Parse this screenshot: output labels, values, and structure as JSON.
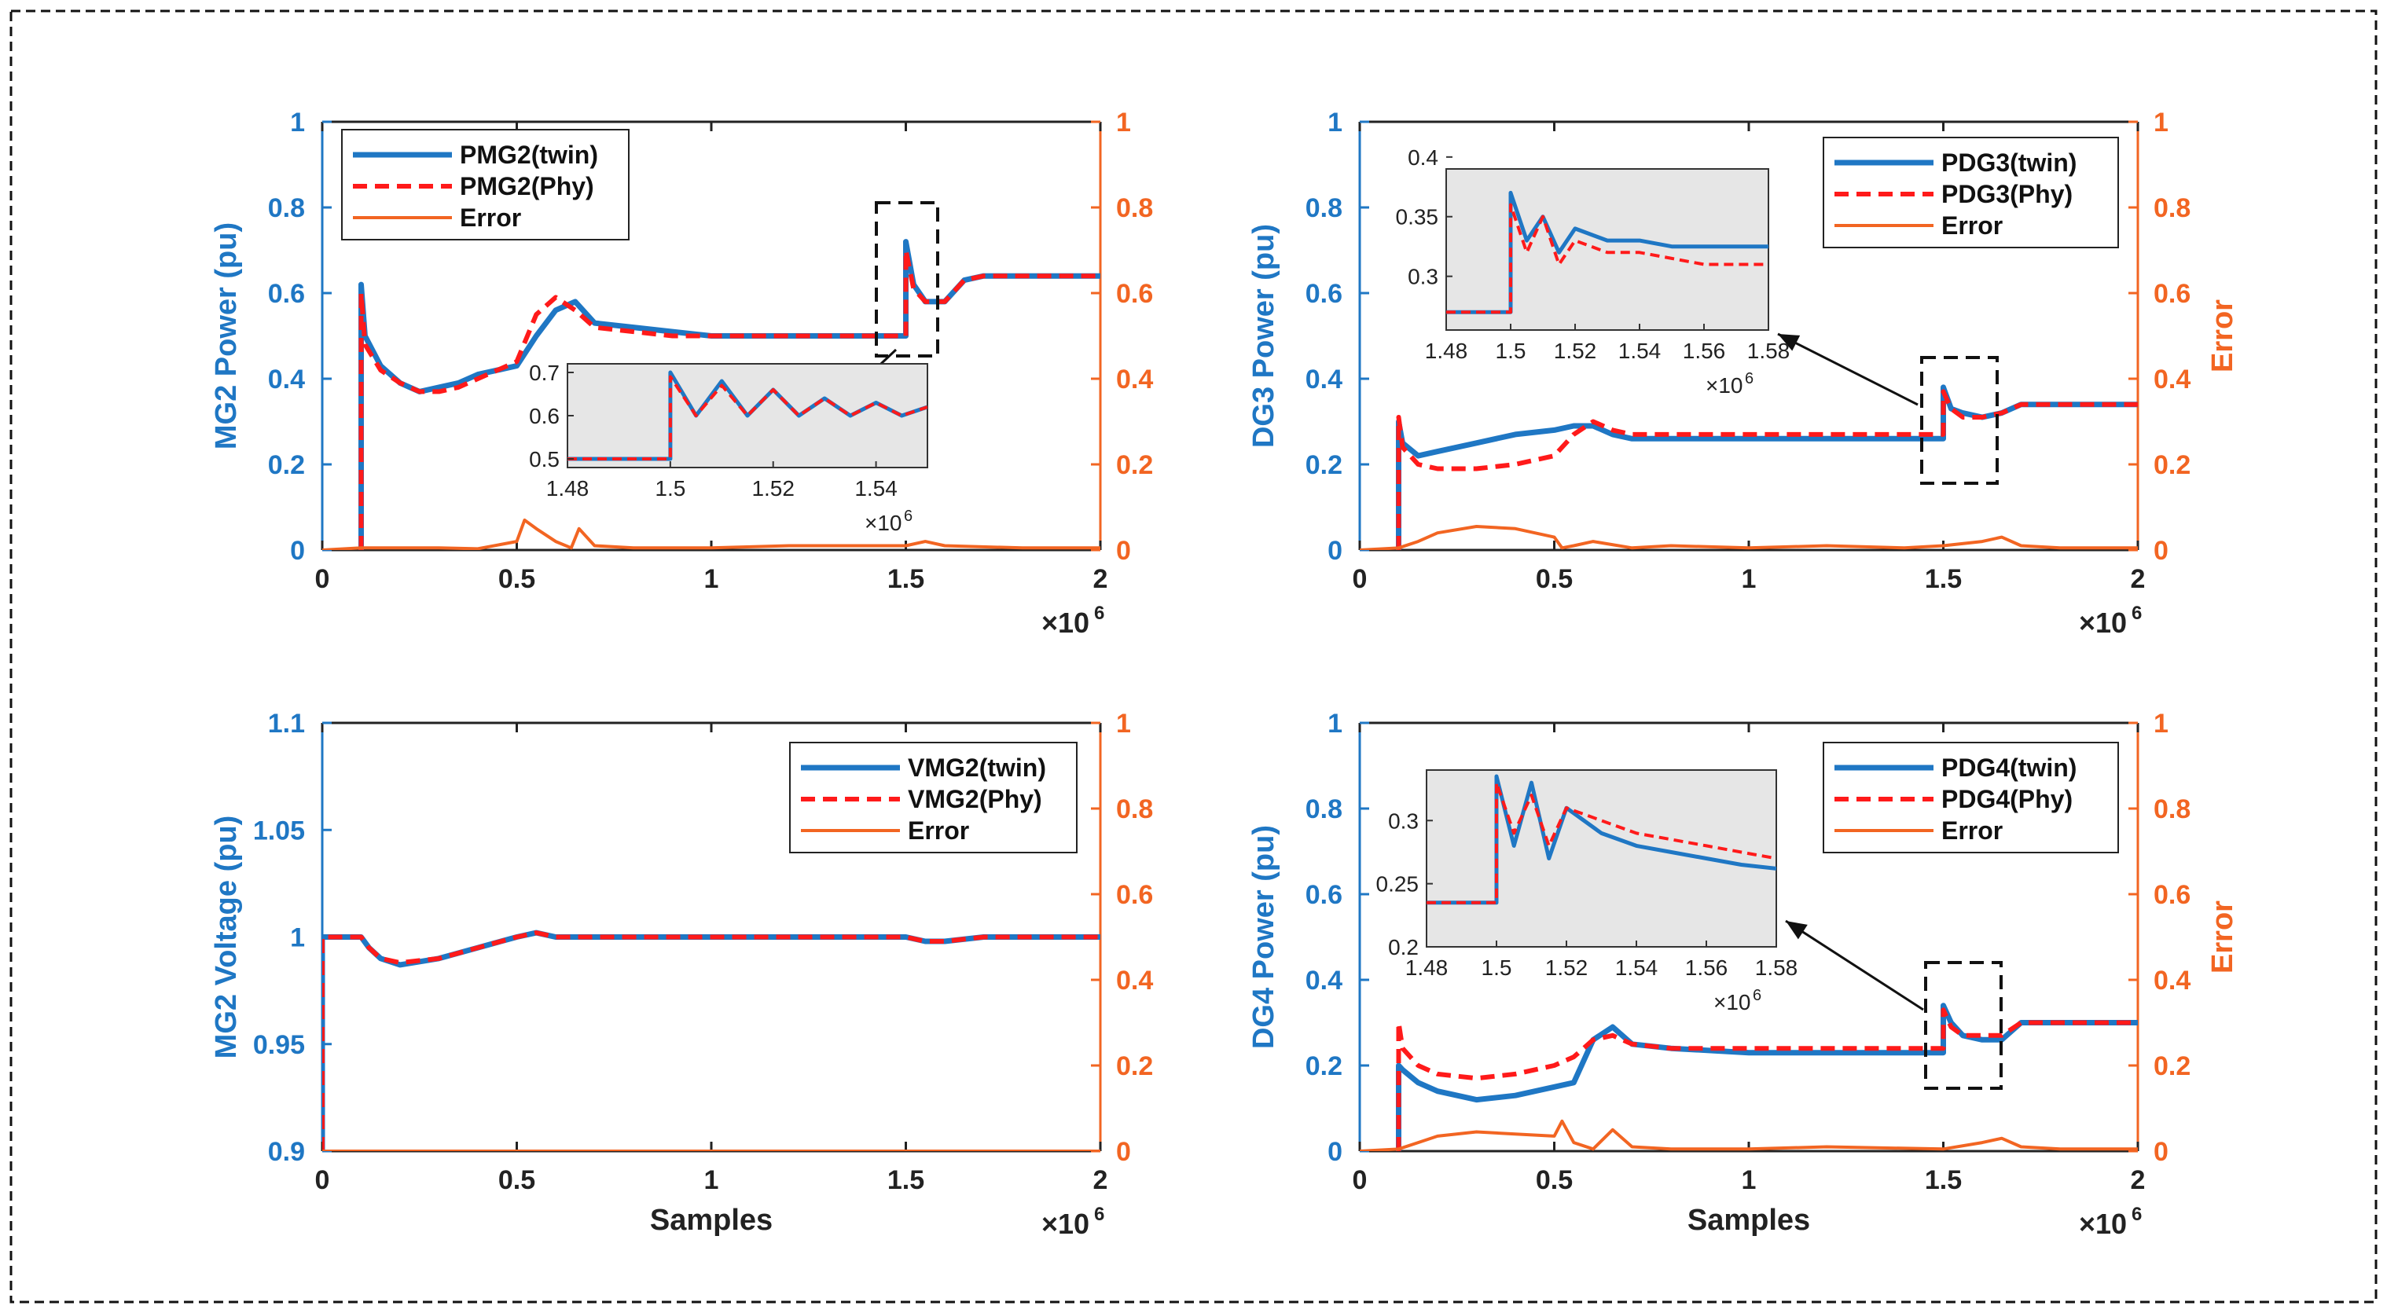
{
  "figure": {
    "colors": {
      "twin": "#1f77c4",
      "phy": "#ff1a1a",
      "error": "#f26522",
      "left_axis": "#1f77c4",
      "right_axis": "#f26522",
      "inset_bg": "#e6e6e6"
    }
  },
  "chart_data": [
    {
      "id": "mg2-power",
      "type": "line",
      "ylabel": "MG2 Power (pu)",
      "ylabel_right": "",
      "xlabel": "",
      "xlim": [
        0,
        2
      ],
      "ylim": [
        0,
        1
      ],
      "ylim_right": [
        0,
        1
      ],
      "x_ticks": [
        "0",
        "0.5",
        "1",
        "1.5",
        "2"
      ],
      "y_ticks": [
        "0",
        "0.2",
        "0.4",
        "0.6",
        "0.8",
        "1"
      ],
      "y_ticks_right": [
        "0",
        "0.2",
        "0.4",
        "0.6",
        "0.8",
        "1"
      ],
      "x_exponent": "×10",
      "x_exponent_power": "6",
      "legend_position": "top-left",
      "legend": [
        "PMG2(twin)",
        "PMG2(Phy)",
        "Error"
      ],
      "series": [
        {
          "name": "PMG2(twin)",
          "x": [
            0.1,
            0.1,
            0.11,
            0.15,
            0.2,
            0.25,
            0.3,
            0.35,
            0.4,
            0.45,
            0.5,
            0.55,
            0.6,
            0.65,
            0.7,
            0.8,
            0.9,
            1.0,
            1.2,
            1.4,
            1.5,
            1.5,
            1.52,
            1.55,
            1.6,
            1.65,
            1.7,
            1.8,
            1.9,
            2.0
          ],
          "y": [
            0,
            0.62,
            0.5,
            0.43,
            0.39,
            0.37,
            0.38,
            0.39,
            0.41,
            0.42,
            0.43,
            0.5,
            0.56,
            0.58,
            0.53,
            0.52,
            0.51,
            0.5,
            0.5,
            0.5,
            0.5,
            0.72,
            0.62,
            0.58,
            0.58,
            0.63,
            0.64,
            0.64,
            0.64,
            0.64
          ]
        },
        {
          "name": "PMG2(Phy)",
          "x": [
            0.1,
            0.1,
            0.11,
            0.15,
            0.2,
            0.25,
            0.3,
            0.35,
            0.4,
            0.45,
            0.5,
            0.55,
            0.6,
            0.65,
            0.7,
            0.8,
            0.9,
            1.0,
            1.2,
            1.4,
            1.5,
            1.5,
            1.52,
            1.55,
            1.6,
            1.65,
            1.7,
            1.8,
            1.9,
            2.0
          ],
          "y": [
            0,
            0.6,
            0.48,
            0.42,
            0.39,
            0.37,
            0.37,
            0.38,
            0.4,
            0.42,
            0.44,
            0.55,
            0.59,
            0.56,
            0.52,
            0.51,
            0.5,
            0.5,
            0.5,
            0.5,
            0.5,
            0.7,
            0.61,
            0.58,
            0.58,
            0.63,
            0.64,
            0.64,
            0.64,
            0.64
          ]
        },
        {
          "name": "Error",
          "x": [
            0,
            0.1,
            0.2,
            0.3,
            0.4,
            0.5,
            0.52,
            0.55,
            0.6,
            0.64,
            0.66,
            0.7,
            0.8,
            1.0,
            1.2,
            1.5,
            1.55,
            1.6,
            1.8,
            2.0
          ],
          "y": [
            0,
            0.005,
            0.005,
            0.005,
            0.003,
            0.02,
            0.07,
            0.05,
            0.02,
            0.005,
            0.05,
            0.01,
            0.005,
            0.005,
            0.01,
            0.01,
            0.02,
            0.01,
            0.005,
            0.005
          ]
        }
      ],
      "inset": {
        "xlim": [
          1.48,
          1.55
        ],
        "ylim": [
          0.48,
          0.72
        ],
        "x_ticks": [
          "1.48",
          "1.5",
          "1.52",
          "1.54"
        ],
        "y_ticks": [
          "0.5",
          "0.6",
          "0.7"
        ],
        "x_exponent": "×10",
        "x_exponent_power": "6",
        "series": [
          {
            "name": "PMG2(twin)",
            "x": [
              1.48,
              1.49,
              1.5,
              1.5,
              1.505,
              1.51,
              1.515,
              1.52,
              1.525,
              1.53,
              1.535,
              1.54,
              1.545,
              1.55
            ],
            "y": [
              0.5,
              0.5,
              0.5,
              0.7,
              0.6,
              0.68,
              0.6,
              0.66,
              0.6,
              0.64,
              0.6,
              0.63,
              0.6,
              0.62
            ]
          },
          {
            "name": "PMG2(Phy)",
            "x": [
              1.48,
              1.49,
              1.5,
              1.5,
              1.505,
              1.51,
              1.515,
              1.52,
              1.525,
              1.53,
              1.535,
              1.54,
              1.545,
              1.55
            ],
            "y": [
              0.5,
              0.5,
              0.5,
              0.69,
              0.6,
              0.67,
              0.6,
              0.66,
              0.6,
              0.64,
              0.6,
              0.63,
              0.6,
              0.62
            ]
          }
        ]
      }
    },
    {
      "id": "dg3-power",
      "type": "line",
      "ylabel": "DG3 Power (pu)",
      "ylabel_right": "Error",
      "xlabel": "",
      "xlim": [
        0,
        2
      ],
      "ylim": [
        0,
        1
      ],
      "ylim_right": [
        0,
        1
      ],
      "x_ticks": [
        "0",
        "0.5",
        "1",
        "1.5",
        "2"
      ],
      "y_ticks": [
        "0",
        "0.2",
        "0.4",
        "0.6",
        "0.8",
        "1"
      ],
      "y_ticks_right": [
        "0",
        "0.2",
        "0.4",
        "0.6",
        "0.8",
        "1"
      ],
      "x_exponent": "×10",
      "x_exponent_power": "6",
      "legend_position": "top-right",
      "legend": [
        "PDG3(twin)",
        "PDG3(Phy)",
        "Error"
      ],
      "series": [
        {
          "name": "PDG3(twin)",
          "x": [
            0.1,
            0.1,
            0.11,
            0.15,
            0.2,
            0.3,
            0.4,
            0.5,
            0.55,
            0.6,
            0.65,
            0.7,
            0.8,
            1.0,
            1.2,
            1.4,
            1.5,
            1.5,
            1.52,
            1.55,
            1.6,
            1.65,
            1.7,
            1.8,
            2.0
          ],
          "y": [
            0,
            0.3,
            0.25,
            0.22,
            0.23,
            0.25,
            0.27,
            0.28,
            0.29,
            0.29,
            0.27,
            0.26,
            0.26,
            0.26,
            0.26,
            0.26,
            0.26,
            0.38,
            0.33,
            0.32,
            0.31,
            0.32,
            0.34,
            0.34,
            0.34
          ]
        },
        {
          "name": "PDG3(Phy)",
          "x": [
            0.1,
            0.1,
            0.11,
            0.15,
            0.2,
            0.3,
            0.4,
            0.5,
            0.55,
            0.6,
            0.65,
            0.7,
            0.8,
            1.0,
            1.2,
            1.4,
            1.5,
            1.5,
            1.52,
            1.55,
            1.6,
            1.65,
            1.7,
            1.8,
            2.0
          ],
          "y": [
            0,
            0.31,
            0.24,
            0.2,
            0.19,
            0.19,
            0.2,
            0.22,
            0.27,
            0.3,
            0.28,
            0.27,
            0.27,
            0.27,
            0.27,
            0.27,
            0.27,
            0.37,
            0.33,
            0.31,
            0.31,
            0.32,
            0.34,
            0.34,
            0.34
          ]
        },
        {
          "name": "Error",
          "x": [
            0,
            0.1,
            0.15,
            0.2,
            0.3,
            0.4,
            0.5,
            0.52,
            0.55,
            0.6,
            0.7,
            0.8,
            1.0,
            1.2,
            1.4,
            1.5,
            1.6,
            1.65,
            1.7,
            1.8,
            2.0
          ],
          "y": [
            0,
            0.005,
            0.02,
            0.04,
            0.055,
            0.05,
            0.03,
            0.005,
            0.01,
            0.02,
            0.005,
            0.01,
            0.005,
            0.01,
            0.005,
            0.01,
            0.02,
            0.03,
            0.01,
            0.005,
            0.005
          ]
        }
      ],
      "inset": {
        "xlim": [
          1.48,
          1.58
        ],
        "ylim": [
          0.255,
          0.39
        ],
        "x_ticks": [
          "1.48",
          "1.5",
          "1.52",
          "1.54",
          "1.56",
          "1.58"
        ],
        "y_ticks": [
          "0.3",
          "0.35",
          "0.4"
        ],
        "x_exponent": "×10",
        "x_exponent_power": "6",
        "series": [
          {
            "name": "PDG3(twin)",
            "x": [
              1.48,
              1.49,
              1.5,
              1.5,
              1.505,
              1.51,
              1.515,
              1.52,
              1.53,
              1.54,
              1.55,
              1.56,
              1.57,
              1.58
            ],
            "y": [
              0.27,
              0.27,
              0.27,
              0.37,
              0.33,
              0.35,
              0.32,
              0.34,
              0.33,
              0.33,
              0.325,
              0.325,
              0.325,
              0.325
            ]
          },
          {
            "name": "PDG3(Phy)",
            "x": [
              1.48,
              1.49,
              1.5,
              1.5,
              1.505,
              1.51,
              1.515,
              1.52,
              1.53,
              1.54,
              1.55,
              1.56,
              1.57,
              1.58
            ],
            "y": [
              0.27,
              0.27,
              0.27,
              0.36,
              0.32,
              0.35,
              0.31,
              0.33,
              0.32,
              0.32,
              0.315,
              0.31,
              0.31,
              0.31
            ]
          }
        ]
      }
    },
    {
      "id": "mg2-voltage",
      "type": "line",
      "ylabel": "MG2 Voltage (pu)",
      "ylabel_right": "",
      "xlabel": "Samples",
      "xlim": [
        0,
        2
      ],
      "ylim": [
        0.9,
        1.1
      ],
      "ylim_right": [
        0,
        1
      ],
      "x_ticks": [
        "0",
        "0.5",
        "1",
        "1.5",
        "2"
      ],
      "y_ticks": [
        "0.9",
        "0.95",
        "1",
        "1.05",
        "1.1"
      ],
      "y_ticks_right": [
        "0",
        "0.2",
        "0.4",
        "0.6",
        "0.8",
        "1"
      ],
      "x_exponent": "×10",
      "x_exponent_power": "6",
      "legend_position": "top-right",
      "legend": [
        "VMG2(twin)",
        "VMG2(Phy)",
        "Error"
      ],
      "series": [
        {
          "name": "VMG2(twin)",
          "x": [
            0,
            0,
            0.1,
            0.12,
            0.15,
            0.2,
            0.3,
            0.4,
            0.5,
            0.55,
            0.6,
            1.0,
            1.4,
            1.5,
            1.55,
            1.6,
            1.7,
            2.0
          ],
          "y": [
            0.9,
            1.0,
            1.0,
            0.995,
            0.99,
            0.987,
            0.99,
            0.995,
            1.0,
            1.002,
            1.0,
            1.0,
            1.0,
            1.0,
            0.998,
            0.998,
            1.0,
            1.0
          ]
        },
        {
          "name": "VMG2(Phy)",
          "x": [
            0,
            0,
            0.1,
            0.12,
            0.15,
            0.2,
            0.3,
            0.4,
            0.5,
            0.55,
            0.6,
            1.0,
            1.4,
            1.5,
            1.55,
            1.6,
            1.7,
            2.0
          ],
          "y": [
            0.9,
            1.0,
            1.0,
            0.995,
            0.99,
            0.988,
            0.99,
            0.995,
            1.0,
            1.002,
            1.0,
            1.0,
            1.0,
            1.0,
            0.998,
            0.998,
            1.0,
            1.0
          ]
        },
        {
          "name": "Error",
          "x": [
            0,
            2
          ],
          "y": [
            0,
            0
          ]
        }
      ]
    },
    {
      "id": "dg4-power",
      "type": "line",
      "ylabel": "DG4 Power (pu)",
      "ylabel_right": "Error",
      "xlabel": "Samples",
      "xlim": [
        0,
        2
      ],
      "ylim": [
        0,
        1
      ],
      "ylim_right": [
        0,
        1
      ],
      "x_ticks": [
        "0",
        "0.5",
        "1",
        "1.5",
        "2"
      ],
      "y_ticks": [
        "0",
        "0.2",
        "0.4",
        "0.6",
        "0.8",
        "1"
      ],
      "y_ticks_right": [
        "0",
        "0.2",
        "0.4",
        "0.6",
        "0.8",
        "1"
      ],
      "x_exponent": "×10",
      "x_exponent_power": "6",
      "legend_position": "top-right",
      "legend": [
        "PDG4(twin)",
        "PDG4(Phy)",
        "Error"
      ],
      "series": [
        {
          "name": "PDG4(twin)",
          "x": [
            0.1,
            0.1,
            0.11,
            0.15,
            0.2,
            0.3,
            0.4,
            0.5,
            0.55,
            0.6,
            0.65,
            0.7,
            0.8,
            1.0,
            1.2,
            1.4,
            1.5,
            1.5,
            1.52,
            1.55,
            1.6,
            1.65,
            1.7,
            1.8,
            2.0
          ],
          "y": [
            0,
            0.2,
            0.19,
            0.16,
            0.14,
            0.12,
            0.13,
            0.15,
            0.16,
            0.26,
            0.29,
            0.25,
            0.24,
            0.23,
            0.23,
            0.23,
            0.23,
            0.34,
            0.3,
            0.27,
            0.26,
            0.26,
            0.3,
            0.3,
            0.3
          ]
        },
        {
          "name": "PDG4(Phy)",
          "x": [
            0.1,
            0.1,
            0.11,
            0.15,
            0.2,
            0.3,
            0.4,
            0.5,
            0.55,
            0.6,
            0.65,
            0.7,
            0.8,
            1.0,
            1.2,
            1.4,
            1.5,
            1.5,
            1.52,
            1.55,
            1.6,
            1.65,
            1.7,
            1.8,
            2.0
          ],
          "y": [
            0,
            0.3,
            0.24,
            0.2,
            0.18,
            0.17,
            0.18,
            0.2,
            0.22,
            0.26,
            0.27,
            0.25,
            0.24,
            0.24,
            0.24,
            0.24,
            0.24,
            0.33,
            0.29,
            0.27,
            0.27,
            0.27,
            0.3,
            0.3,
            0.3
          ]
        },
        {
          "name": "Error",
          "x": [
            0,
            0.1,
            0.15,
            0.2,
            0.3,
            0.4,
            0.5,
            0.52,
            0.55,
            0.6,
            0.65,
            0.7,
            0.8,
            1.0,
            1.2,
            1.5,
            1.6,
            1.65,
            1.7,
            1.8,
            2.0
          ],
          "y": [
            0,
            0.005,
            0.02,
            0.035,
            0.045,
            0.04,
            0.035,
            0.07,
            0.02,
            0.005,
            0.05,
            0.01,
            0.005,
            0.005,
            0.01,
            0.005,
            0.02,
            0.03,
            0.01,
            0.005,
            0.005
          ]
        }
      ],
      "inset": {
        "xlim": [
          1.48,
          1.58
        ],
        "ylim": [
          0.2,
          0.34
        ],
        "x_ticks": [
          "1.48",
          "1.5",
          "1.52",
          "1.54",
          "1.56",
          "1.58"
        ],
        "y_ticks": [
          "0.2",
          "0.25",
          "0.3"
        ],
        "x_exponent": "×10",
        "x_exponent_power": "6",
        "series": [
          {
            "name": "PDG4(twin)",
            "x": [
              1.48,
              1.49,
              1.5,
              1.5,
              1.505,
              1.51,
              1.515,
              1.52,
              1.53,
              1.54,
              1.55,
              1.56,
              1.57,
              1.58
            ],
            "y": [
              0.235,
              0.235,
              0.235,
              0.335,
              0.28,
              0.33,
              0.27,
              0.31,
              0.29,
              0.28,
              0.275,
              0.27,
              0.265,
              0.262
            ]
          },
          {
            "name": "PDG4(Phy)",
            "x": [
              1.48,
              1.49,
              1.5,
              1.5,
              1.505,
              1.51,
              1.515,
              1.52,
              1.53,
              1.54,
              1.55,
              1.56,
              1.57,
              1.58
            ],
            "y": [
              0.235,
              0.235,
              0.235,
              0.33,
              0.29,
              0.32,
              0.28,
              0.31,
              0.3,
              0.29,
              0.285,
              0.28,
              0.275,
              0.27
            ]
          }
        ]
      }
    }
  ]
}
